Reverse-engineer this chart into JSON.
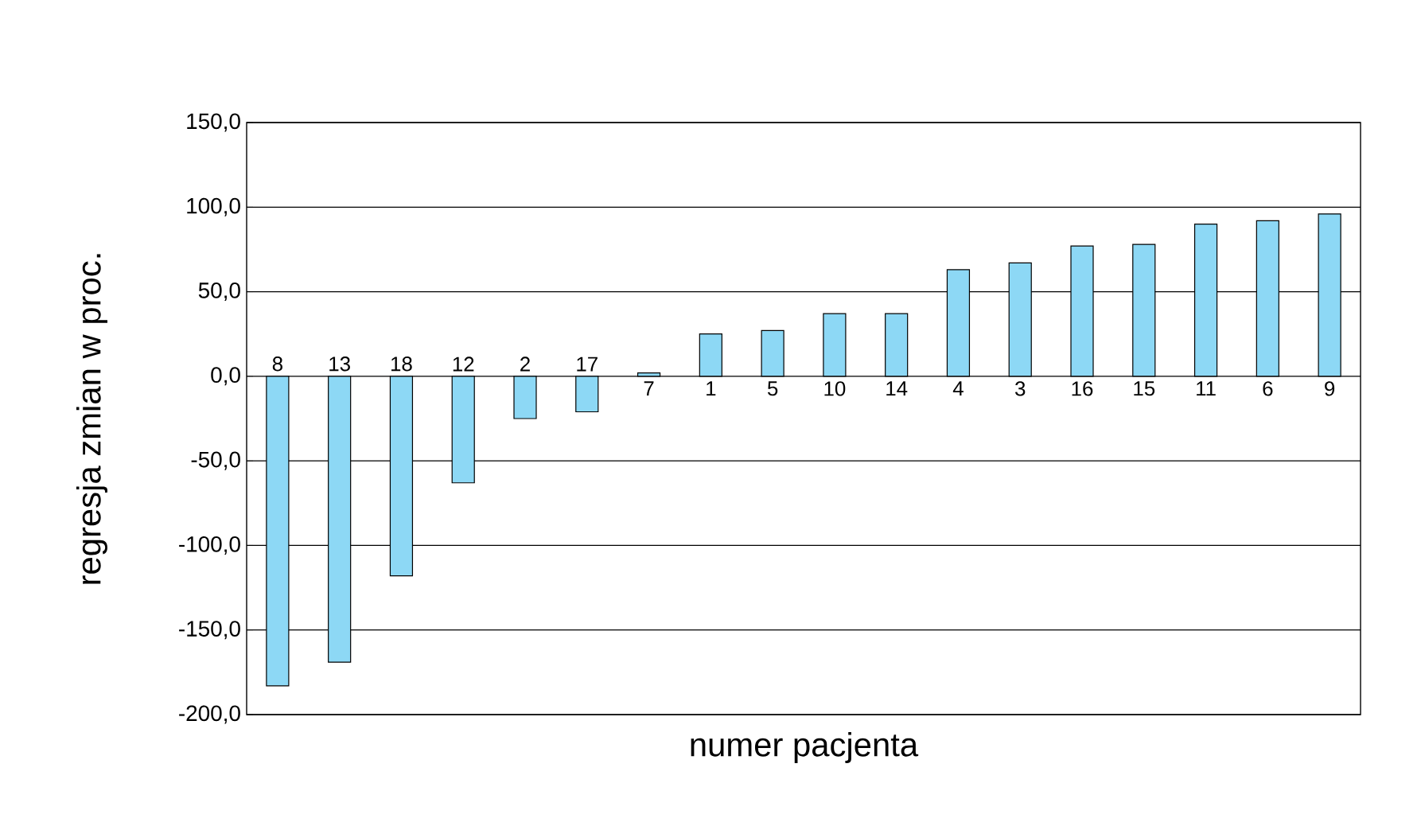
{
  "chart_data": {
    "type": "bar",
    "xlabel": "numer pacjenta",
    "ylabel": "regresja zmian w proc.",
    "categories": [
      "8",
      "13",
      "18",
      "12",
      "2",
      "17",
      "7",
      "1",
      "5",
      "10",
      "14",
      "4",
      "3",
      "16",
      "15",
      "11",
      "6",
      "9"
    ],
    "values": [
      -183,
      -169,
      -118,
      -63,
      -25,
      -21,
      2,
      25,
      27,
      37,
      37,
      63,
      67,
      77,
      78,
      90,
      92,
      96
    ],
    "color": "#8dd8f5",
    "ylim": [
      -200,
      150
    ],
    "yticks": [
      {
        "value": -200,
        "label": "-200,0"
      },
      {
        "value": -150,
        "label": "-150,0"
      },
      {
        "value": -100,
        "label": "-100,0"
      },
      {
        "value": -50,
        "label": "-50,0"
      },
      {
        "value": 0,
        "label": "0,0"
      },
      {
        "value": 50,
        "label": "50,0"
      },
      {
        "value": 100,
        "label": "100,0"
      },
      {
        "value": 150,
        "label": "150,0"
      }
    ],
    "grid": "y"
  }
}
